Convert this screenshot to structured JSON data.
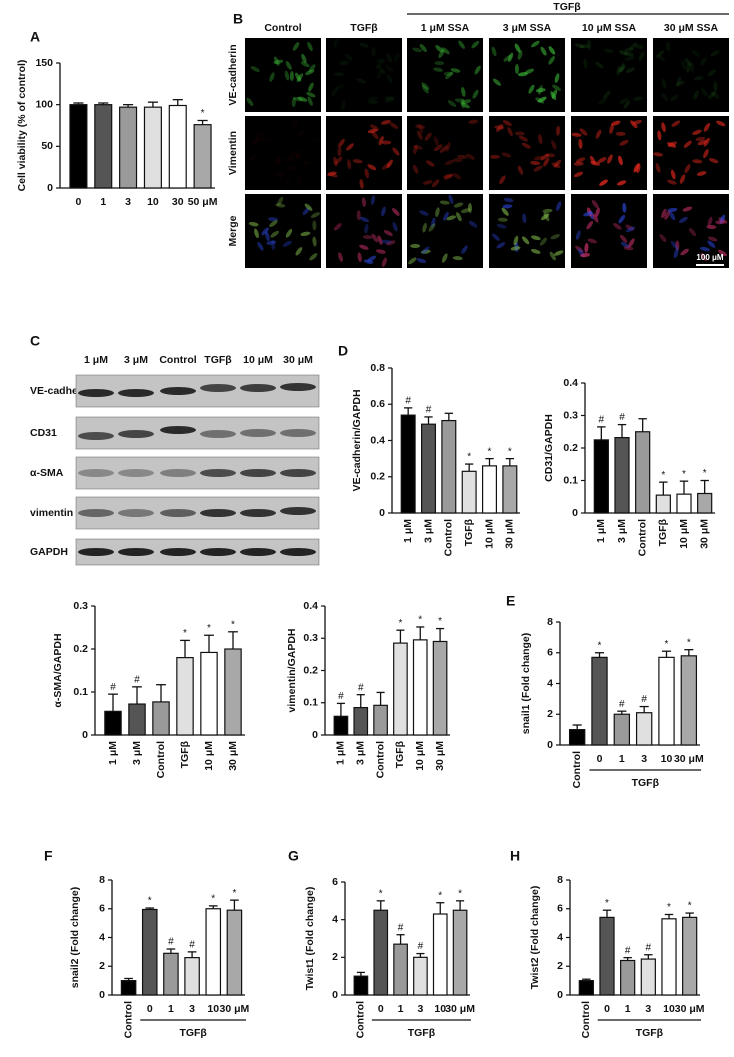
{
  "panel_labels": {
    "A": "A",
    "B": "B",
    "C": "C",
    "D": "D",
    "E": "E",
    "F": "F",
    "G": "G",
    "H": "H"
  },
  "micrographs": {
    "group_label": "TGFβ",
    "columns": [
      "Control",
      "TGFβ",
      "1 μM SSA",
      "3 μM SSA",
      "10 μM SSA",
      "30 μM SSA"
    ],
    "rows": [
      "VE-cadherin",
      "Vimentin",
      "Merge"
    ],
    "scale_bar": "100 μM"
  },
  "western_blot": {
    "lanes": [
      "1 μM",
      "3 μM",
      "Control",
      "TGFβ",
      "10 μM",
      "30 μM"
    ],
    "rows": [
      "VE-cadherin",
      "CD31",
      "α-SMA",
      "vimentin",
      "GAPDH"
    ]
  },
  "chart_data": [
    {
      "type": "bar",
      "y_label": "Cell viability (% of control)",
      "categories": [
        "0",
        "1",
        "3",
        "10",
        "30",
        "50 μM"
      ],
      "values": [
        100,
        100,
        97,
        97,
        99,
        76
      ],
      "errors": [
        2,
        2,
        3,
        6,
        7,
        5
      ],
      "colors": [
        "#000000",
        "#555555",
        "#9a9a9a",
        "#e0e0e0",
        "#ffffff",
        "#a8a8a8"
      ],
      "markers": [
        null,
        null,
        null,
        null,
        null,
        "*"
      ],
      "ylim": [
        0,
        150
      ],
      "yticks": [
        0,
        50,
        100,
        150
      ]
    },
    {
      "type": "bar",
      "y_label": "VE-cadherin/GAPDH",
      "categories": [
        "1 μM",
        "3 μM",
        "Control",
        "TGFβ",
        "10 μM",
        "30 μM"
      ],
      "values": [
        0.54,
        0.49,
        0.51,
        0.23,
        0.26,
        0.26
      ],
      "errors": [
        0.04,
        0.04,
        0.04,
        0.04,
        0.04,
        0.04
      ],
      "colors": [
        "#000000",
        "#555555",
        "#9a9a9a",
        "#e0e0e0",
        "#ffffff",
        "#a8a8a8"
      ],
      "markers": [
        "#",
        "#",
        null,
        "*",
        "*",
        "*"
      ],
      "ylim": [
        0,
        0.8
      ],
      "yticks": [
        0,
        0.2,
        0.4,
        0.6,
        0.8
      ]
    },
    {
      "type": "bar",
      "y_label": "CD31/GAPDH",
      "categories": [
        "1 μM",
        "3 μM",
        "Control",
        "TGFβ",
        "10 μM",
        "30 μM"
      ],
      "values": [
        0.225,
        0.232,
        0.25,
        0.055,
        0.058,
        0.06
      ],
      "errors": [
        0.04,
        0.04,
        0.04,
        0.04,
        0.04,
        0.04
      ],
      "colors": [
        "#000000",
        "#555555",
        "#9a9a9a",
        "#e0e0e0",
        "#ffffff",
        "#a8a8a8"
      ],
      "markers": [
        "#",
        "#",
        null,
        "*",
        "*",
        "*"
      ],
      "ylim": [
        0,
        0.4
      ],
      "yticks": [
        0,
        0.1,
        0.2,
        0.3,
        0.4
      ]
    },
    {
      "type": "bar",
      "y_label": "α-SMA/GAPDH",
      "categories": [
        "1 μM",
        "3 μM",
        "Control",
        "TGFβ",
        "10 μM",
        "30 μM"
      ],
      "values": [
        0.055,
        0.072,
        0.077,
        0.18,
        0.192,
        0.2
      ],
      "errors": [
        0.04,
        0.04,
        0.04,
        0.04,
        0.04,
        0.04
      ],
      "colors": [
        "#000000",
        "#555555",
        "#9a9a9a",
        "#e0e0e0",
        "#ffffff",
        "#a8a8a8"
      ],
      "markers": [
        "#",
        "#",
        null,
        "*",
        "*",
        "*"
      ],
      "ylim": [
        0,
        0.3
      ],
      "yticks": [
        0,
        0.1,
        0.2,
        0.3
      ]
    },
    {
      "type": "bar",
      "y_label": "vimentin/GAPDH",
      "categories": [
        "1 μM",
        "3 μM",
        "Control",
        "TGFβ",
        "10 μM",
        "30 μM"
      ],
      "values": [
        0.058,
        0.085,
        0.092,
        0.285,
        0.295,
        0.29
      ],
      "errors": [
        0.04,
        0.04,
        0.04,
        0.04,
        0.04,
        0.04
      ],
      "colors": [
        "#000000",
        "#555555",
        "#9a9a9a",
        "#e0e0e0",
        "#ffffff",
        "#a8a8a8"
      ],
      "markers": [
        "#",
        "#",
        null,
        "*",
        "*",
        "*"
      ],
      "ylim": [
        0,
        0.4
      ],
      "yticks": [
        0,
        0.1,
        0.2,
        0.3,
        0.4
      ]
    },
    {
      "type": "bar",
      "y_label": "snail1 (Fold change)",
      "categories": [
        "Control",
        "0",
        "1",
        "3",
        "10",
        "30 μM"
      ],
      "group_label": "TGFβ",
      "values": [
        1,
        5.7,
        2,
        2.1,
        5.7,
        5.8
      ],
      "errors": [
        0.3,
        0.3,
        0.2,
        0.4,
        0.4,
        0.4
      ],
      "colors": [
        "#000000",
        "#555555",
        "#9a9a9a",
        "#e0e0e0",
        "#ffffff",
        "#a8a8a8"
      ],
      "markers": [
        null,
        "*",
        "#",
        "#",
        "*",
        "*"
      ],
      "ylim": [
        0,
        8
      ],
      "yticks": [
        0,
        2,
        4,
        6,
        8
      ]
    },
    {
      "type": "bar",
      "y_label": "snail2 (Fold change)",
      "categories": [
        "Control",
        "0",
        "1",
        "3",
        "10",
        "30 μM"
      ],
      "group_label": "TGFβ",
      "values": [
        1,
        5.95,
        2.9,
        2.6,
        6,
        5.9
      ],
      "errors": [
        0.15,
        0.1,
        0.3,
        0.4,
        0.2,
        0.7
      ],
      "colors": [
        "#000000",
        "#555555",
        "#9a9a9a",
        "#e0e0e0",
        "#ffffff",
        "#a8a8a8"
      ],
      "markers": [
        null,
        "*",
        "#",
        "#",
        "*",
        "*"
      ],
      "ylim": [
        0,
        8
      ],
      "yticks": [
        0,
        2,
        4,
        6,
        8
      ]
    },
    {
      "type": "bar",
      "y_label": "Twist1 (Fold change)",
      "categories": [
        "Control",
        "0",
        "1",
        "3",
        "10",
        "30 μM"
      ],
      "group_label": "TGFβ",
      "values": [
        1,
        4.5,
        2.7,
        2,
        4.3,
        4.5
      ],
      "errors": [
        0.2,
        0.5,
        0.5,
        0.2,
        0.6,
        0.5
      ],
      "colors": [
        "#000000",
        "#555555",
        "#9a9a9a",
        "#e0e0e0",
        "#ffffff",
        "#a8a8a8"
      ],
      "markers": [
        null,
        "*",
        "#",
        "#",
        "*",
        "*"
      ],
      "ylim": [
        0,
        6
      ],
      "yticks": [
        0,
        2,
        4,
        6
      ]
    },
    {
      "type": "bar",
      "y_label": "Twist2 (Fold change)",
      "categories": [
        "Control",
        "0",
        "1",
        "3",
        "10",
        "30 μM"
      ],
      "group_label": "TGFβ",
      "values": [
        1,
        5.4,
        2.4,
        2.5,
        5.3,
        5.4
      ],
      "errors": [
        0.1,
        0.5,
        0.2,
        0.3,
        0.3,
        0.3
      ],
      "colors": [
        "#000000",
        "#555555",
        "#9a9a9a",
        "#e0e0e0",
        "#ffffff",
        "#a8a8a8"
      ],
      "markers": [
        null,
        "*",
        "#",
        "#",
        "*",
        "*"
      ],
      "ylim": [
        0,
        8
      ],
      "yticks": [
        0,
        2,
        4,
        6,
        8
      ]
    }
  ]
}
